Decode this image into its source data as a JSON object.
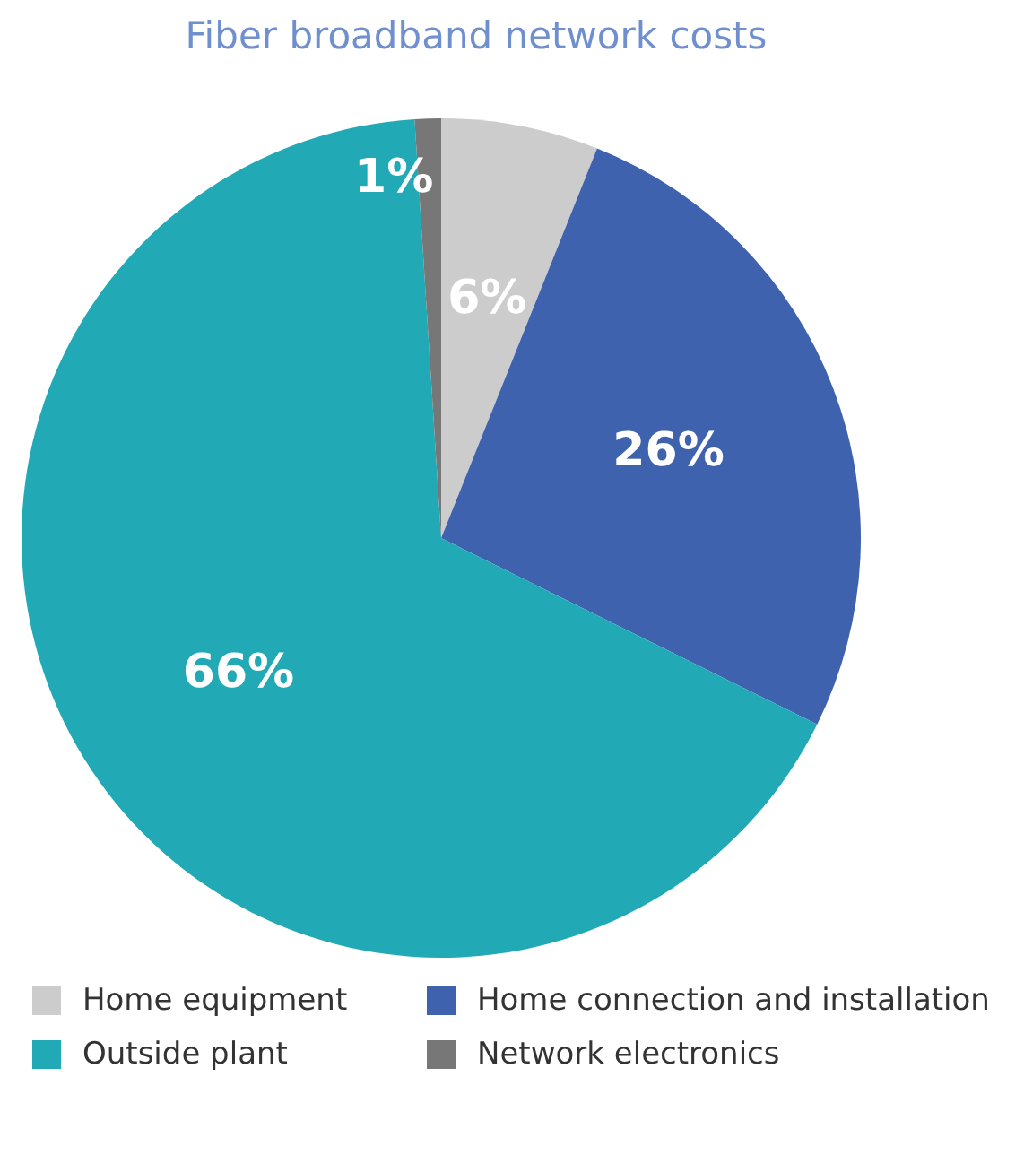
{
  "chart_data": {
    "type": "pie",
    "title": "Fiber broadband network costs",
    "categories": [
      "Home equipment",
      "Home connection and installation",
      "Outside plant",
      "Network electronics"
    ],
    "values": [
      6,
      26,
      66,
      1
    ],
    "value_labels": [
      "6%",
      "26%",
      "66%",
      "1%"
    ],
    "colors": [
      "#cccccc",
      "#3f62ae",
      "#21aab6",
      "#777777"
    ],
    "legend": "bottom"
  }
}
